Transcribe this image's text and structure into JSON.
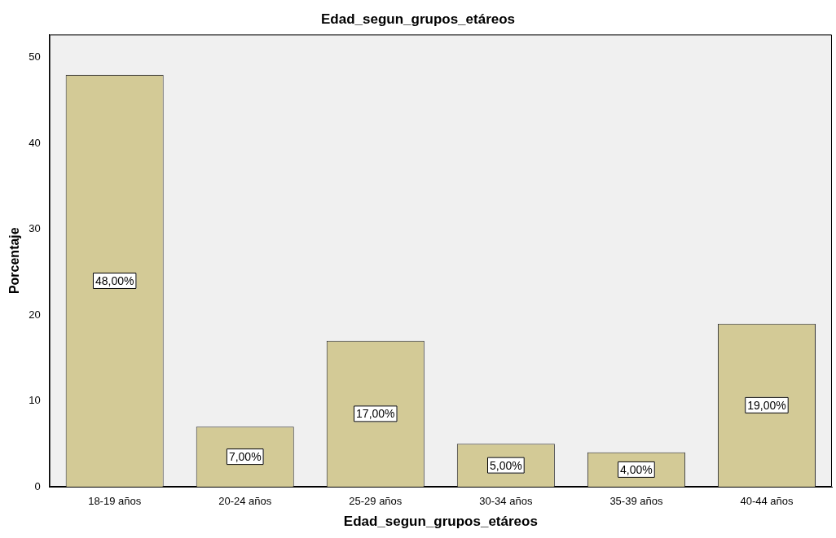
{
  "chart_data": {
    "type": "bar",
    "title": "Edad_segun_grupos_etáreos",
    "xlabel": "Edad_segun_grupos_etáreos",
    "ylabel": "Porcentaje",
    "categories": [
      "18-19 años",
      "20-24 años",
      "25-29 años",
      "30-34 años",
      "35-39 años",
      "40-44 años"
    ],
    "values": [
      48,
      7,
      17,
      5,
      4,
      19
    ],
    "value_labels": [
      "48,00%",
      "7,00%",
      "17,00%",
      "5,00%",
      "4,00%",
      "19,00%"
    ],
    "color": "#d3ca96",
    "ylim": [
      0,
      52.7
    ],
    "yticks": [
      0,
      10,
      20,
      30,
      40,
      50
    ],
    "grid": false,
    "legend": false
  }
}
